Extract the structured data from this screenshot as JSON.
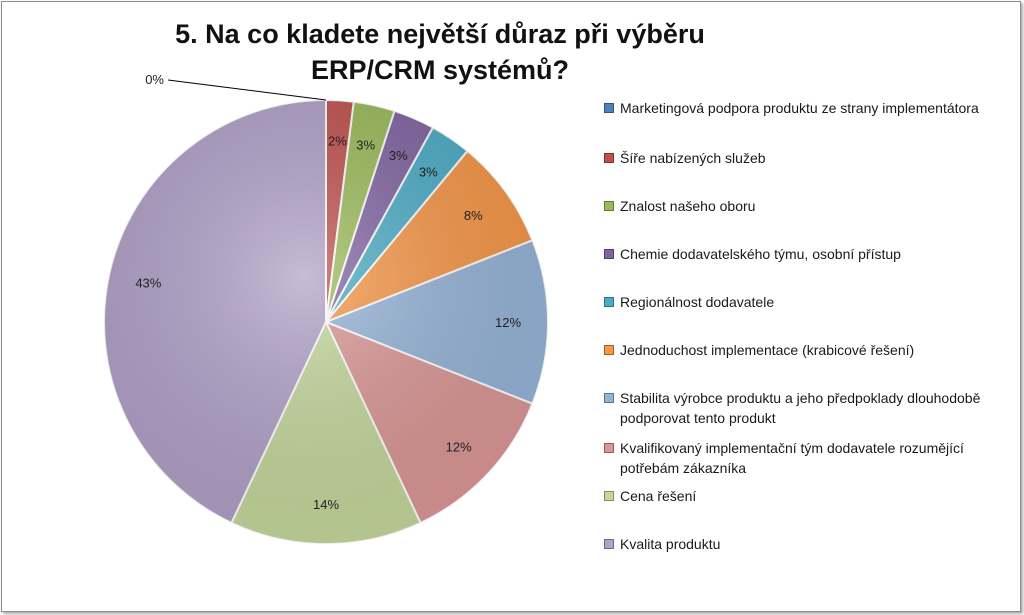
{
  "chart_data": {
    "type": "pie",
    "title": "5. Na co kladete největší důraz při výběru ERP/CRM systémů?",
    "categories": [
      "Marketingová podpora produktu ze strany implementátora",
      "Šíře nabízených služeb",
      "Znalost našeho oboru",
      "Chemie dodavatelského týmu, osobní přístup",
      "Regionálnost dodavatele",
      "Jednoduchost implementace (krabicové řešení)",
      "Stabilita výrobce produktu a jeho předpoklady dlouhodobě podporovat tento produkt",
      "Kvalifikovaný implementační tým dodavatele rozumějící potřebám zákazníka",
      "Cena řešení",
      "Kvalita produktu"
    ],
    "values": [
      0,
      2,
      3,
      3,
      3,
      8,
      12,
      12,
      14,
      43
    ],
    "data_labels": [
      "0%",
      "2%",
      "3%",
      "3%",
      "3%",
      "8%",
      "12%",
      "12%",
      "14%",
      "43%"
    ],
    "colors": [
      "#4F81BD",
      "#C0504D",
      "#9BBB59",
      "#8064A2",
      "#4BACC6",
      "#F79646",
      "#95B3D7",
      "#DA9694",
      "#C4D79B",
      "#B1A0C7"
    ],
    "legend_position": "right",
    "start_angle_deg": 0,
    "direction": "clockwise"
  }
}
